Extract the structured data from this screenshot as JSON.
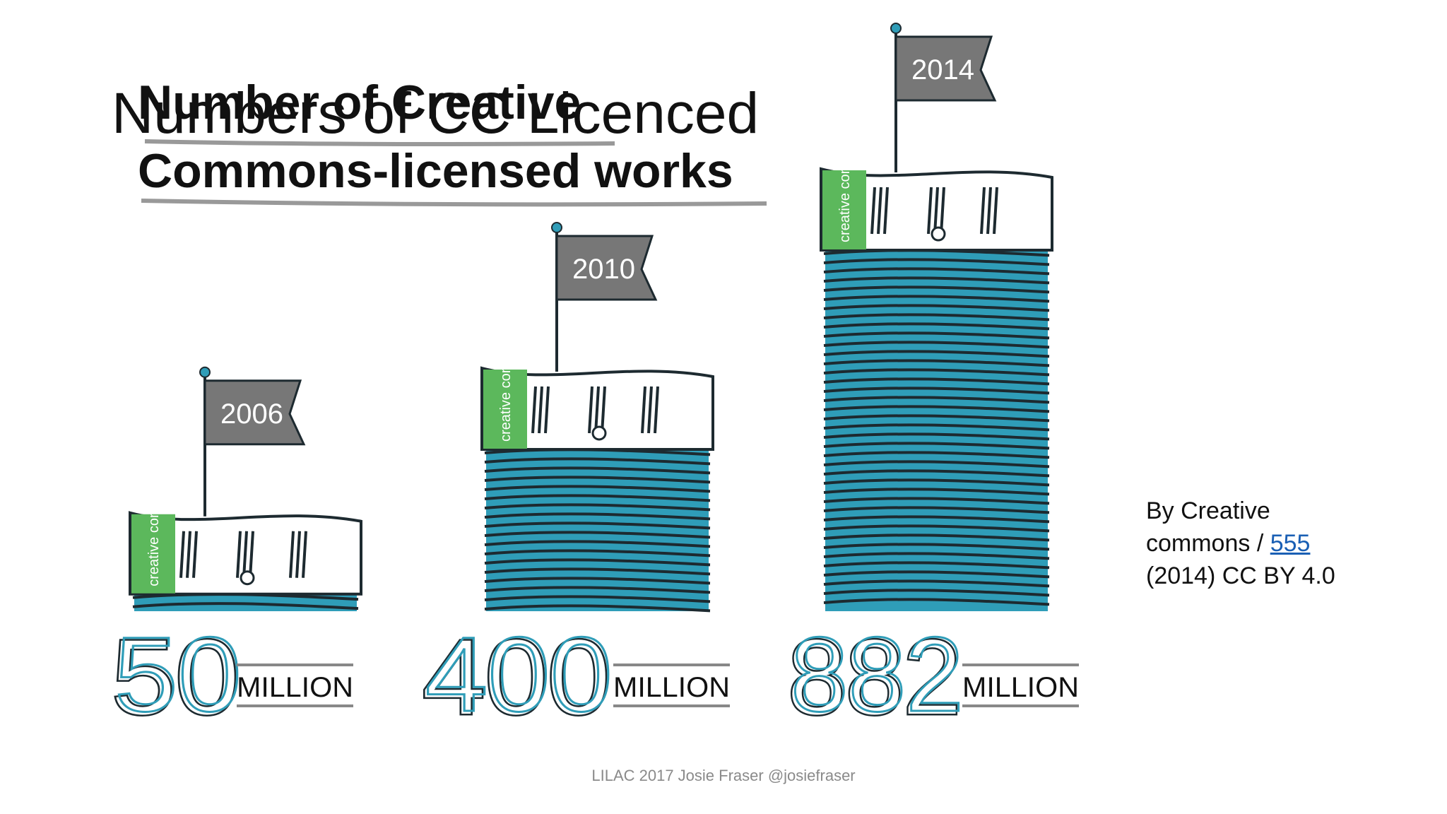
{
  "slide": {
    "title": "Numbers of CC Licenced",
    "credit_prefix": "By Creative commons /",
    "credit_link": "555",
    "credit_suffix": "(2014) CC BY 4.0",
    "footer": "LILAC 2017 Josie Fraser @josiefraser"
  },
  "infographic": {
    "heading_line1": "Number of Creative",
    "heading_line2": "Commons-licensed works",
    "unit": "MILLION",
    "logo_text_1": "creative",
    "logo_text_2": "commons",
    "colors": {
      "teal": "#2f9db8",
      "green": "#5cb85c",
      "flag_gray": "#777777",
      "ink": "#1d2a30"
    },
    "stacks": [
      {
        "year": "2006",
        "amount": "50",
        "value_millions": 50
      },
      {
        "year": "2010",
        "amount": "400",
        "value_millions": 400
      },
      {
        "year": "2014",
        "amount": "882",
        "value_millions": 882
      }
    ]
  }
}
